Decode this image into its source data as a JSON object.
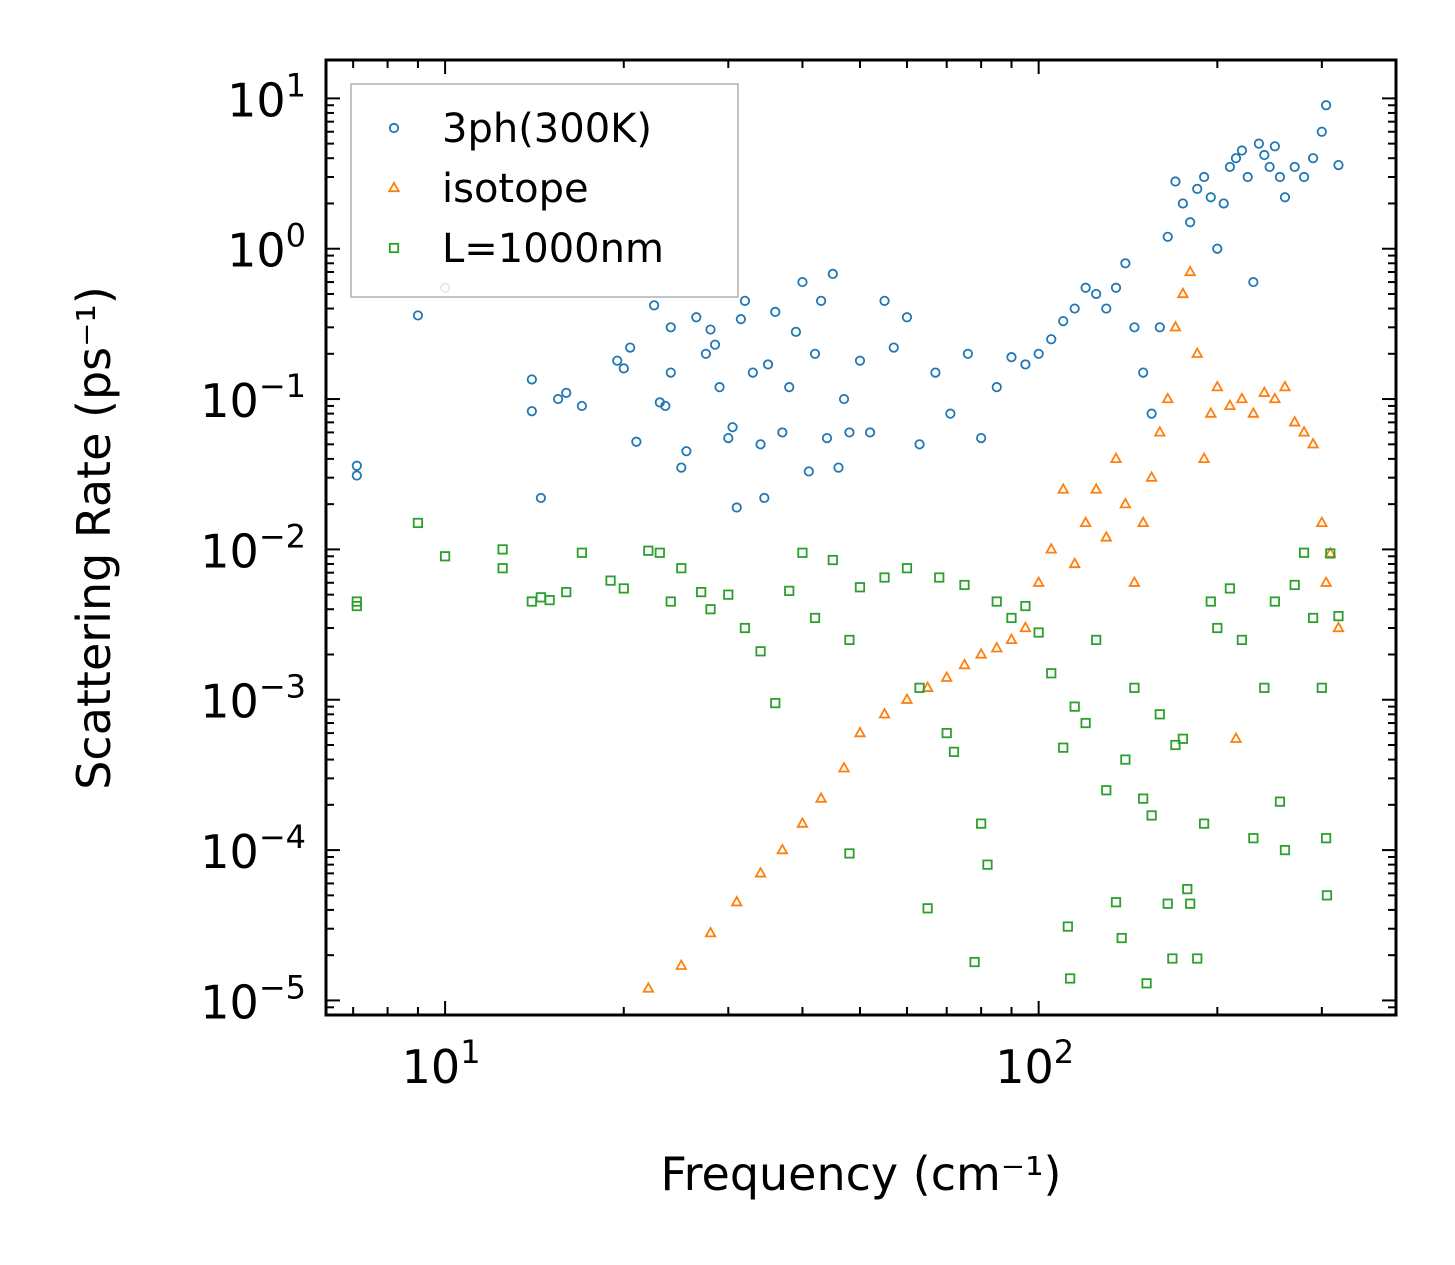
{
  "chart_data": {
    "type": "scatter",
    "xlabel": "Frequency (cm⁻¹)",
    "ylabel": "Scattering Rate (ps⁻¹)",
    "xscale": "log",
    "yscale": "log",
    "xlim": [
      6.3,
      400
    ],
    "ylim": [
      8e-06,
      18
    ],
    "x_ticks": [
      {
        "value": 10,
        "base": "10",
        "exp": "1"
      },
      {
        "value": 100,
        "base": "10",
        "exp": "2"
      }
    ],
    "y_ticks": [
      {
        "value": 10,
        "base": "10",
        "exp": "1"
      },
      {
        "value": 1,
        "base": "10",
        "exp": "0"
      },
      {
        "value": 0.1,
        "base": "10",
        "exp": "−1"
      },
      {
        "value": 0.01,
        "base": "10",
        "exp": "−2"
      },
      {
        "value": 0.001,
        "base": "10",
        "exp": "−3"
      },
      {
        "value": 0.0001,
        "base": "10",
        "exp": "−4"
      },
      {
        "value": 1e-05,
        "base": "10",
        "exp": "−5"
      }
    ],
    "legend": {
      "position": "upper-left"
    },
    "series": [
      {
        "name": "3ph(300K)",
        "marker": "circle",
        "color": "#1f77b4",
        "points": [
          [
            7.1,
            0.036
          ],
          [
            7.1,
            0.031
          ],
          [
            9.0,
            0.36
          ],
          [
            10.0,
            0.55
          ],
          [
            14.0,
            0.135
          ],
          [
            14.0,
            0.083
          ],
          [
            14.5,
            0.022
          ],
          [
            15.5,
            0.1
          ],
          [
            16.0,
            0.11
          ],
          [
            17.0,
            0.09
          ],
          [
            19.5,
            0.18
          ],
          [
            20.0,
            0.16
          ],
          [
            20.5,
            0.22
          ],
          [
            21.0,
            0.052
          ],
          [
            22.5,
            0.42
          ],
          [
            23.0,
            0.095
          ],
          [
            23.5,
            0.09
          ],
          [
            24.0,
            0.3
          ],
          [
            24.0,
            0.15
          ],
          [
            25.0,
            0.035
          ],
          [
            25.5,
            0.045
          ],
          [
            26.5,
            0.35
          ],
          [
            27.5,
            0.2
          ],
          [
            28.0,
            0.29
          ],
          [
            28.5,
            0.23
          ],
          [
            29.0,
            0.12
          ],
          [
            30.0,
            0.055
          ],
          [
            30.5,
            0.065
          ],
          [
            31.0,
            0.019
          ],
          [
            31.5,
            0.34
          ],
          [
            32.0,
            0.45
          ],
          [
            33.0,
            0.15
          ],
          [
            34.0,
            0.05
          ],
          [
            34.5,
            0.022
          ],
          [
            35.0,
            0.17
          ],
          [
            36.0,
            0.38
          ],
          [
            37.0,
            0.06
          ],
          [
            38.0,
            0.12
          ],
          [
            39.0,
            0.28
          ],
          [
            40.0,
            0.6
          ],
          [
            41.0,
            0.033
          ],
          [
            42.0,
            0.2
          ],
          [
            43.0,
            0.45
          ],
          [
            44.0,
            0.055
          ],
          [
            45.0,
            0.68
          ],
          [
            46.0,
            0.035
          ],
          [
            47.0,
            0.1
          ],
          [
            48.0,
            0.06
          ],
          [
            50.0,
            0.18
          ],
          [
            52.0,
            0.06
          ],
          [
            55.0,
            0.45
          ],
          [
            57.0,
            0.22
          ],
          [
            60.0,
            0.35
          ],
          [
            63.0,
            0.05
          ],
          [
            67.0,
            0.15
          ],
          [
            71.0,
            0.08
          ],
          [
            76.0,
            0.2
          ],
          [
            80.0,
            0.055
          ],
          [
            85.0,
            0.12
          ],
          [
            90.0,
            0.19
          ],
          [
            95.0,
            0.17
          ],
          [
            100.0,
            0.2
          ],
          [
            105.0,
            0.25
          ],
          [
            110.0,
            0.33
          ],
          [
            115.0,
            0.4
          ],
          [
            120.0,
            0.55
          ],
          [
            125.0,
            0.5
          ],
          [
            130.0,
            0.4
          ],
          [
            135.0,
            0.55
          ],
          [
            140.0,
            0.8
          ],
          [
            145.0,
            0.3
          ],
          [
            150.0,
            0.15
          ],
          [
            155.0,
            0.08
          ],
          [
            160.0,
            0.3
          ],
          [
            165.0,
            1.2
          ],
          [
            170.0,
            2.8
          ],
          [
            175.0,
            2.0
          ],
          [
            180.0,
            1.5
          ],
          [
            185.0,
            2.5
          ],
          [
            190.0,
            3.0
          ],
          [
            195.0,
            2.2
          ],
          [
            200.0,
            1.0
          ],
          [
            205.0,
            2.0
          ],
          [
            210.0,
            3.5
          ],
          [
            215.0,
            4.0
          ],
          [
            220.0,
            4.5
          ],
          [
            225.0,
            3.0
          ],
          [
            230.0,
            0.6
          ],
          [
            235.0,
            5.0
          ],
          [
            240.0,
            4.2
          ],
          [
            245.0,
            3.5
          ],
          [
            250.0,
            4.8
          ],
          [
            255.0,
            3.0
          ],
          [
            260.0,
            2.2
          ],
          [
            270.0,
            3.5
          ],
          [
            280.0,
            3.0
          ],
          [
            290.0,
            4.0
          ],
          [
            300.0,
            6.0
          ],
          [
            305.0,
            9.0
          ],
          [
            320.0,
            3.6
          ]
        ]
      },
      {
        "name": "isotope",
        "marker": "triangle",
        "color": "#ff7f0e",
        "points": [
          [
            22.0,
            1.2e-05
          ],
          [
            25.0,
            1.7e-05
          ],
          [
            28.0,
            2.8e-05
          ],
          [
            31.0,
            4.5e-05
          ],
          [
            34.0,
            7e-05
          ],
          [
            37.0,
            0.0001
          ],
          [
            40.0,
            0.00015
          ],
          [
            43.0,
            0.00022
          ],
          [
            47.0,
            0.00035
          ],
          [
            50.0,
            0.0006
          ],
          [
            55.0,
            0.0008
          ],
          [
            60.0,
            0.001
          ],
          [
            65.0,
            0.0012
          ],
          [
            70.0,
            0.0014
          ],
          [
            75.0,
            0.0017
          ],
          [
            80.0,
            0.002
          ],
          [
            85.0,
            0.0022
          ],
          [
            90.0,
            0.0025
          ],
          [
            95.0,
            0.003
          ],
          [
            100.0,
            0.006
          ],
          [
            105.0,
            0.01
          ],
          [
            110.0,
            0.025
          ],
          [
            115.0,
            0.008
          ],
          [
            120.0,
            0.015
          ],
          [
            125.0,
            0.025
          ],
          [
            130.0,
            0.012
          ],
          [
            135.0,
            0.04
          ],
          [
            140.0,
            0.02
          ],
          [
            145.0,
            0.006
          ],
          [
            150.0,
            0.015
          ],
          [
            155.0,
            0.03
          ],
          [
            160.0,
            0.06
          ],
          [
            165.0,
            0.1
          ],
          [
            170.0,
            0.3
          ],
          [
            175.0,
            0.5
          ],
          [
            180.0,
            0.7
          ],
          [
            185.0,
            0.2
          ],
          [
            190.0,
            0.04
          ],
          [
            195.0,
            0.08
          ],
          [
            200.0,
            0.12
          ],
          [
            210.0,
            0.09
          ],
          [
            220.0,
            0.1
          ],
          [
            230.0,
            0.08
          ],
          [
            240.0,
            0.11
          ],
          [
            250.0,
            0.1
          ],
          [
            260.0,
            0.12
          ],
          [
            270.0,
            0.07
          ],
          [
            280.0,
            0.06
          ],
          [
            290.0,
            0.05
          ],
          [
            300.0,
            0.015
          ],
          [
            305.0,
            0.006
          ],
          [
            310.0,
            0.0094
          ],
          [
            320.0,
            0.003
          ],
          [
            215.0,
            0.00055
          ]
        ]
      },
      {
        "name": "L=1000nm",
        "marker": "square",
        "color": "#2ca02c",
        "points": [
          [
            7.1,
            0.0045
          ],
          [
            7.1,
            0.0042
          ],
          [
            9.0,
            0.015
          ],
          [
            10.0,
            0.009
          ],
          [
            12.5,
            0.01
          ],
          [
            12.5,
            0.0075
          ],
          [
            14.0,
            0.0045
          ],
          [
            14.5,
            0.0048
          ],
          [
            15.0,
            0.0046
          ],
          [
            16.0,
            0.0052
          ],
          [
            17.0,
            0.0095
          ],
          [
            19.0,
            0.0062
          ],
          [
            20.0,
            0.0055
          ],
          [
            22.0,
            0.0098
          ],
          [
            23.0,
            0.0095
          ],
          [
            24.0,
            0.0045
          ],
          [
            25.0,
            0.0075
          ],
          [
            27.0,
            0.0052
          ],
          [
            28.0,
            0.004
          ],
          [
            30.0,
            0.005
          ],
          [
            32.0,
            0.003
          ],
          [
            34.0,
            0.0021
          ],
          [
            36.0,
            0.00095
          ],
          [
            38.0,
            0.0053
          ],
          [
            40.0,
            0.0095
          ],
          [
            42.0,
            0.0035
          ],
          [
            45.0,
            0.0085
          ],
          [
            48.0,
            0.0025
          ],
          [
            48.0,
            9.5e-05
          ],
          [
            50.0,
            0.0056
          ],
          [
            55.0,
            0.0065
          ],
          [
            60.0,
            0.0075
          ],
          [
            63.0,
            0.0012
          ],
          [
            65.0,
            4.1e-05
          ],
          [
            68.0,
            0.0065
          ],
          [
            70.0,
            0.0006
          ],
          [
            72.0,
            0.00045
          ],
          [
            75.0,
            0.0058
          ],
          [
            78.0,
            1.8e-05
          ],
          [
            80.0,
            0.00015
          ],
          [
            82.0,
            8e-05
          ],
          [
            85.0,
            0.0045
          ],
          [
            90.0,
            0.0035
          ],
          [
            95.0,
            0.0042
          ],
          [
            100.0,
            0.0028
          ],
          [
            105.0,
            0.0015
          ],
          [
            110.0,
            0.00048
          ],
          [
            112.0,
            3.1e-05
          ],
          [
            113.0,
            1.4e-05
          ],
          [
            115.0,
            0.0009
          ],
          [
            120.0,
            0.0007
          ],
          [
            125.0,
            0.0025
          ],
          [
            130.0,
            0.00025
          ],
          [
            135.0,
            4.5e-05
          ],
          [
            138.0,
            2.6e-05
          ],
          [
            140.0,
            0.0004
          ],
          [
            145.0,
            0.0012
          ],
          [
            150.0,
            0.00022
          ],
          [
            152.0,
            1.3e-05
          ],
          [
            155.0,
            0.00017
          ],
          [
            160.0,
            0.0008
          ],
          [
            165.0,
            4.4e-05
          ],
          [
            168.0,
            1.9e-05
          ],
          [
            170.0,
            0.0005
          ],
          [
            175.0,
            0.00055
          ],
          [
            178.0,
            5.5e-05
          ],
          [
            180.0,
            4.4e-05
          ],
          [
            185.0,
            1.9e-05
          ],
          [
            190.0,
            0.00015
          ],
          [
            195.0,
            0.0045
          ],
          [
            200.0,
            0.003
          ],
          [
            210.0,
            0.0055
          ],
          [
            220.0,
            0.0025
          ],
          [
            230.0,
            0.00012
          ],
          [
            240.0,
            0.0012
          ],
          [
            250.0,
            0.0045
          ],
          [
            255.0,
            0.00021
          ],
          [
            260.0,
            0.0001
          ],
          [
            270.0,
            0.0058
          ],
          [
            280.0,
            0.0095
          ],
          [
            290.0,
            0.0035
          ],
          [
            300.0,
            0.0012
          ],
          [
            305.0,
            0.00012
          ],
          [
            306.0,
            5e-05
          ],
          [
            310.0,
            0.0094
          ],
          [
            320.0,
            0.0036
          ]
        ]
      }
    ]
  }
}
